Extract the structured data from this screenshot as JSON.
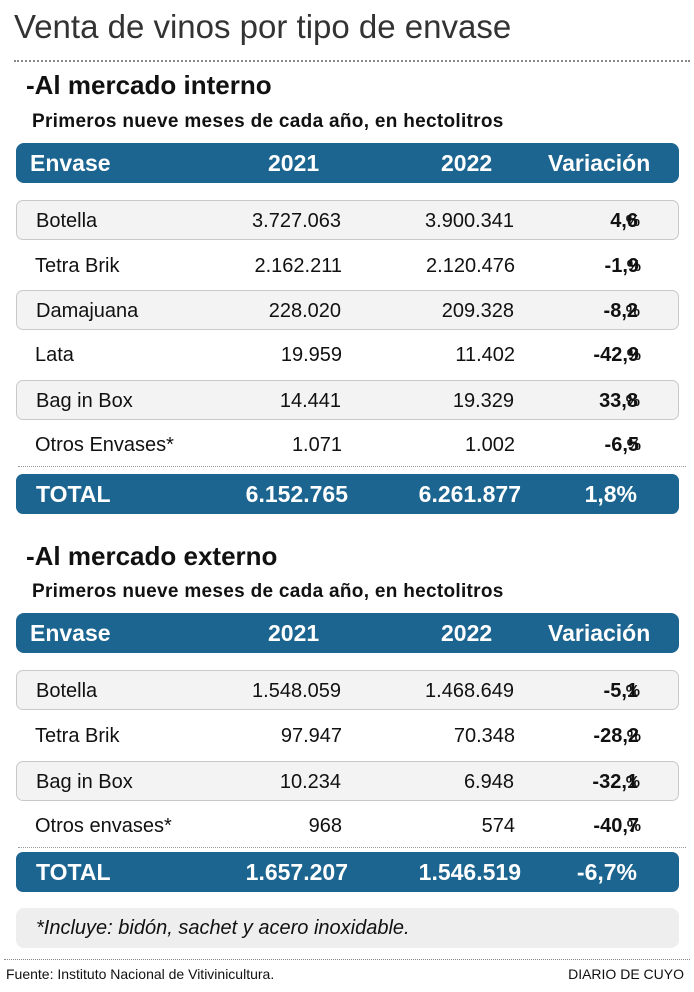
{
  "title": "Venta de vinos por tipo de envase",
  "columns": {
    "envase": "Envase",
    "y2021": "2021",
    "y2022": "2022",
    "variacion": "Variación"
  },
  "interno": {
    "heading": "-Al mercado interno",
    "subheading": "Primeros nueve meses de cada año, en hectolitros",
    "rows": [
      {
        "name": "Botella",
        "v2021": "3.727.063",
        "v2022": "3.900.341",
        "var": "4,6",
        "pct": "%"
      },
      {
        "name": "Tetra Brik",
        "v2021": "2.162.211",
        "v2022": "2.120.476",
        "var": "-1,9",
        "pct": "%"
      },
      {
        "name": "Damajuana",
        "v2021": "228.020",
        "v2022": "209.328",
        "var": "-8,2",
        "pct": "%"
      },
      {
        "name": "Lata",
        "v2021": "19.959",
        "v2022": "11.402",
        "var": "-42,9",
        "pct": "%"
      },
      {
        "name": "Bag in Box",
        "v2021": "14.441",
        "v2022": "19.329",
        "var": "33,8",
        "pct": "%"
      },
      {
        "name": "Otros Envases*",
        "v2021": "1.071",
        "v2022": "1.002",
        "var": "-6,5",
        "pct": "%"
      }
    ],
    "total": {
      "label": "TOTAL",
      "v2021": "6.152.765",
      "v2022": "6.261.877",
      "var": "1,8%"
    }
  },
  "externo": {
    "heading": "-Al mercado externo",
    "subheading": "Primeros nueve meses de cada año, en hectolitros",
    "rows": [
      {
        "name": "Botella",
        "v2021": "1.548.059",
        "v2022": "1.468.649",
        "var": "-5,1",
        "pct": "%"
      },
      {
        "name": "Tetra Brik",
        "v2021": "97.947",
        "v2022": "70.348",
        "var": "-28,2",
        "pct": "%"
      },
      {
        "name": "Bag in Box",
        "v2021": "10.234",
        "v2022": "6.948",
        "var": "-32,1",
        "pct": "%"
      },
      {
        "name": "Otros envases*",
        "v2021": "968",
        "v2022": "574",
        "var": "-40,7",
        "pct": "%"
      }
    ],
    "total": {
      "label": "TOTAL",
      "v2021": "1.657.207",
      "v2022": "1.546.519",
      "var": "-6,7%"
    }
  },
  "note": "*Incluye: bidón, sachet y acero inoxidable.",
  "footer": {
    "source": "Fuente: Instituto Nacional de Vitivinicultura.",
    "brand": "DIARIO DE CUYO"
  },
  "colors": {
    "header_blue": "#1c6590",
    "row_shade": "#f3f3f3"
  }
}
